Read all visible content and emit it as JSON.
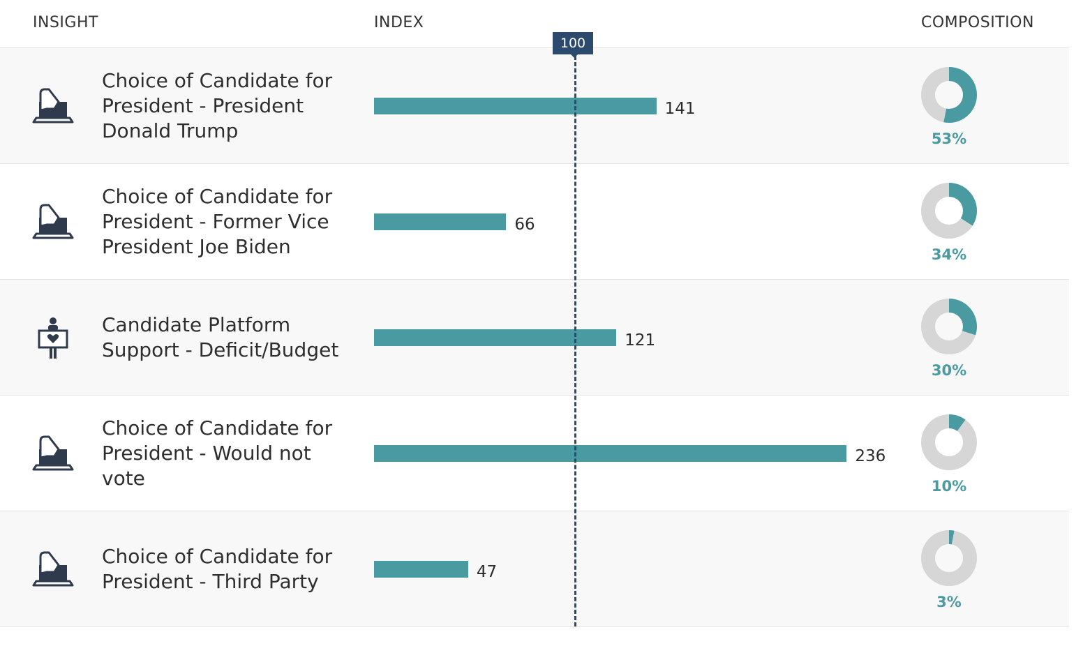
{
  "header": {
    "insight": "INSIGHT",
    "index": "INDEX",
    "composition": "COMPOSITION"
  },
  "reference": {
    "label": "100",
    "value": 100
  },
  "colors": {
    "bar": "#4a9ba1",
    "donut_fill": "#4a9ba1",
    "donut_rest": "#d6d6d6",
    "reference": "#2c4a6e",
    "icon": "#2f3a4c"
  },
  "chart_data": {
    "type": "bar",
    "orientation": "horizontal",
    "categories": [
      "Choice of Candidate for President - President Donald Trump",
      "Choice of Candidate for President - Former Vice President Joe Biden",
      "Candidate Platform Support - Deficit/Budget",
      "Choice of Candidate for President - Would not vote",
      "Choice of Candidate for President - Third Party"
    ],
    "series": [
      {
        "name": "INDEX",
        "values": [
          141,
          66,
          121,
          236,
          47
        ]
      },
      {
        "name": "COMPOSITION",
        "values": [
          53,
          34,
          30,
          10,
          3
        ]
      }
    ],
    "reference_line": 100
  },
  "rows": [
    {
      "label": "Choice of Candidate for President - President Donald Trump",
      "index": 141,
      "index_label": "141",
      "composition": 53,
      "composition_label": "53%",
      "icon": "ballot-box-icon"
    },
    {
      "label": "Choice of Candidate for President - Former Vice President Joe Biden",
      "index": 66,
      "index_label": "66",
      "composition": 34,
      "composition_label": "34%",
      "icon": "ballot-box-icon"
    },
    {
      "label": "Candidate Platform Support - Deficit/Budget",
      "index": 121,
      "index_label": "121",
      "composition": 30,
      "composition_label": "30%",
      "icon": "supporter-sign-icon"
    },
    {
      "label": "Choice of Candidate for President - Would not vote",
      "index": 236,
      "index_label": "236",
      "composition": 10,
      "composition_label": "10%",
      "icon": "ballot-box-icon"
    },
    {
      "label": "Choice of Candidate for President - Third Party",
      "index": 47,
      "index_label": "47",
      "composition": 3,
      "composition_label": "3%",
      "icon": "ballot-box-icon"
    }
  ]
}
